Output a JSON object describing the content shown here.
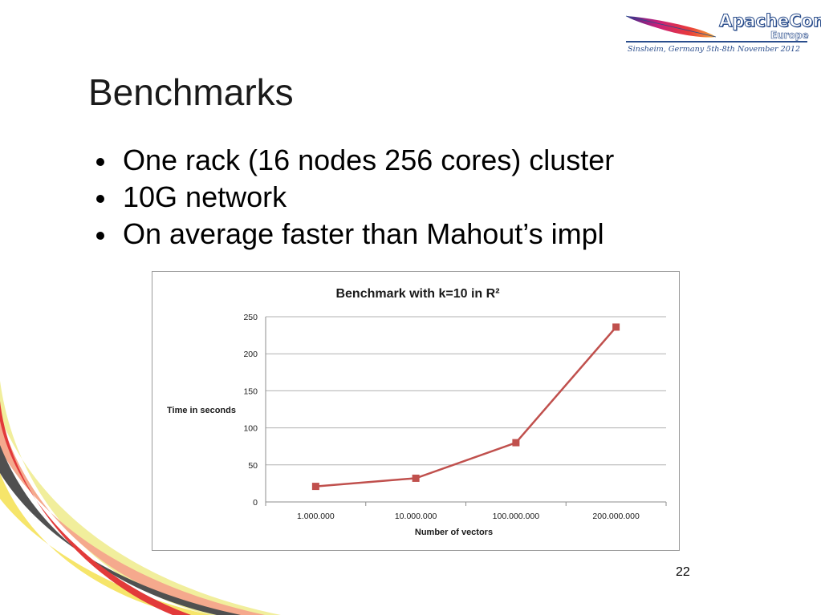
{
  "slide": {
    "title": "Benchmarks",
    "bullets": [
      "One rack (16 nodes 256 cores) cluster",
      "10G network",
      "On average faster than Mahout’s impl"
    ],
    "page_number": "22"
  },
  "logo": {
    "name": "ApacheCon",
    "region": "Europe",
    "tagline": "Sinsheim, Germany 5th-8th November 2012",
    "icon": "feather-icon"
  },
  "colors": {
    "series": "#c0504d",
    "grid": "#b0b0b0",
    "logo_blue": "#2a4d8c"
  },
  "chart_data": {
    "type": "line",
    "title": "Benchmark with k=10 in R²",
    "xlabel": "Number of vectors",
    "ylabel": "Time in seconds",
    "categories": [
      "1.000.000",
      "10.000.000",
      "100.000.000",
      "200.000.000"
    ],
    "series": [
      {
        "values": [
          21,
          32,
          80,
          236
        ]
      }
    ],
    "ylim": [
      0,
      250
    ],
    "yticks": [
      0,
      50,
      100,
      150,
      200,
      250
    ],
    "grid": true,
    "legend": "none"
  }
}
